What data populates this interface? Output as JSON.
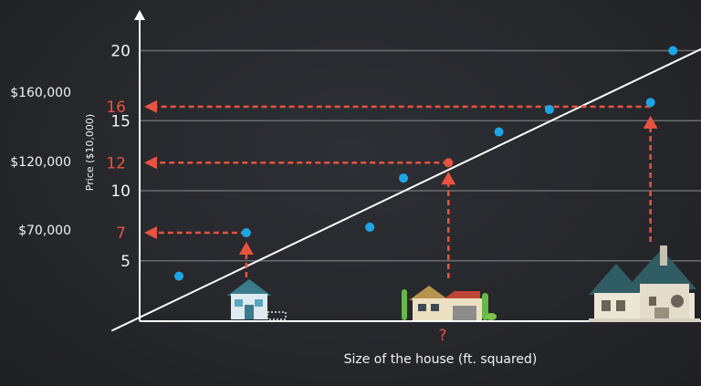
{
  "chart_data": {
    "type": "scatter",
    "title": "",
    "xlabel": "Size of the house (ft. squared)",
    "ylabel": "Price ($10,000)",
    "ylim": [
      0,
      21
    ],
    "yticks": [
      5,
      10,
      15,
      20
    ],
    "highlight_ticks": [
      7,
      12,
      16
    ],
    "x_marker_label": "?",
    "price_labels": [
      {
        "tick": 16,
        "text": "$160,000"
      },
      {
        "tick": 12,
        "text": "$120,000"
      },
      {
        "tick": 7,
        "text": "$70,000"
      }
    ],
    "points": [
      {
        "x": 0.07,
        "y": 3.9
      },
      {
        "x": 0.19,
        "y": 7.0
      },
      {
        "x": 0.41,
        "y": 7.4
      },
      {
        "x": 0.47,
        "y": 10.9
      },
      {
        "x": 0.64,
        "y": 14.2
      },
      {
        "x": 0.73,
        "y": 15.8
      },
      {
        "x": 0.91,
        "y": 16.3
      },
      {
        "x": 0.95,
        "y": 20.0
      }
    ],
    "trend_line": {
      "x0": -0.05,
      "y0": 0,
      "x1": 1.01,
      "y1": 20.3
    },
    "lookups": [
      {
        "x": 0.19,
        "y": 7
      },
      {
        "x": 0.55,
        "y": 12
      },
      {
        "x": 0.91,
        "y": 16
      }
    ],
    "colors": {
      "point": "#1ea5e8",
      "dashed": "#e8533f",
      "line": "#ffffff",
      "grid": "#6b6c70",
      "highlight": "#e8533f"
    }
  },
  "houses": [
    {
      "name": "small-house-icon",
      "x": 0.19
    },
    {
      "name": "medium-house-icon",
      "x": 0.55
    },
    {
      "name": "large-house-icon",
      "x": 0.91
    }
  ]
}
